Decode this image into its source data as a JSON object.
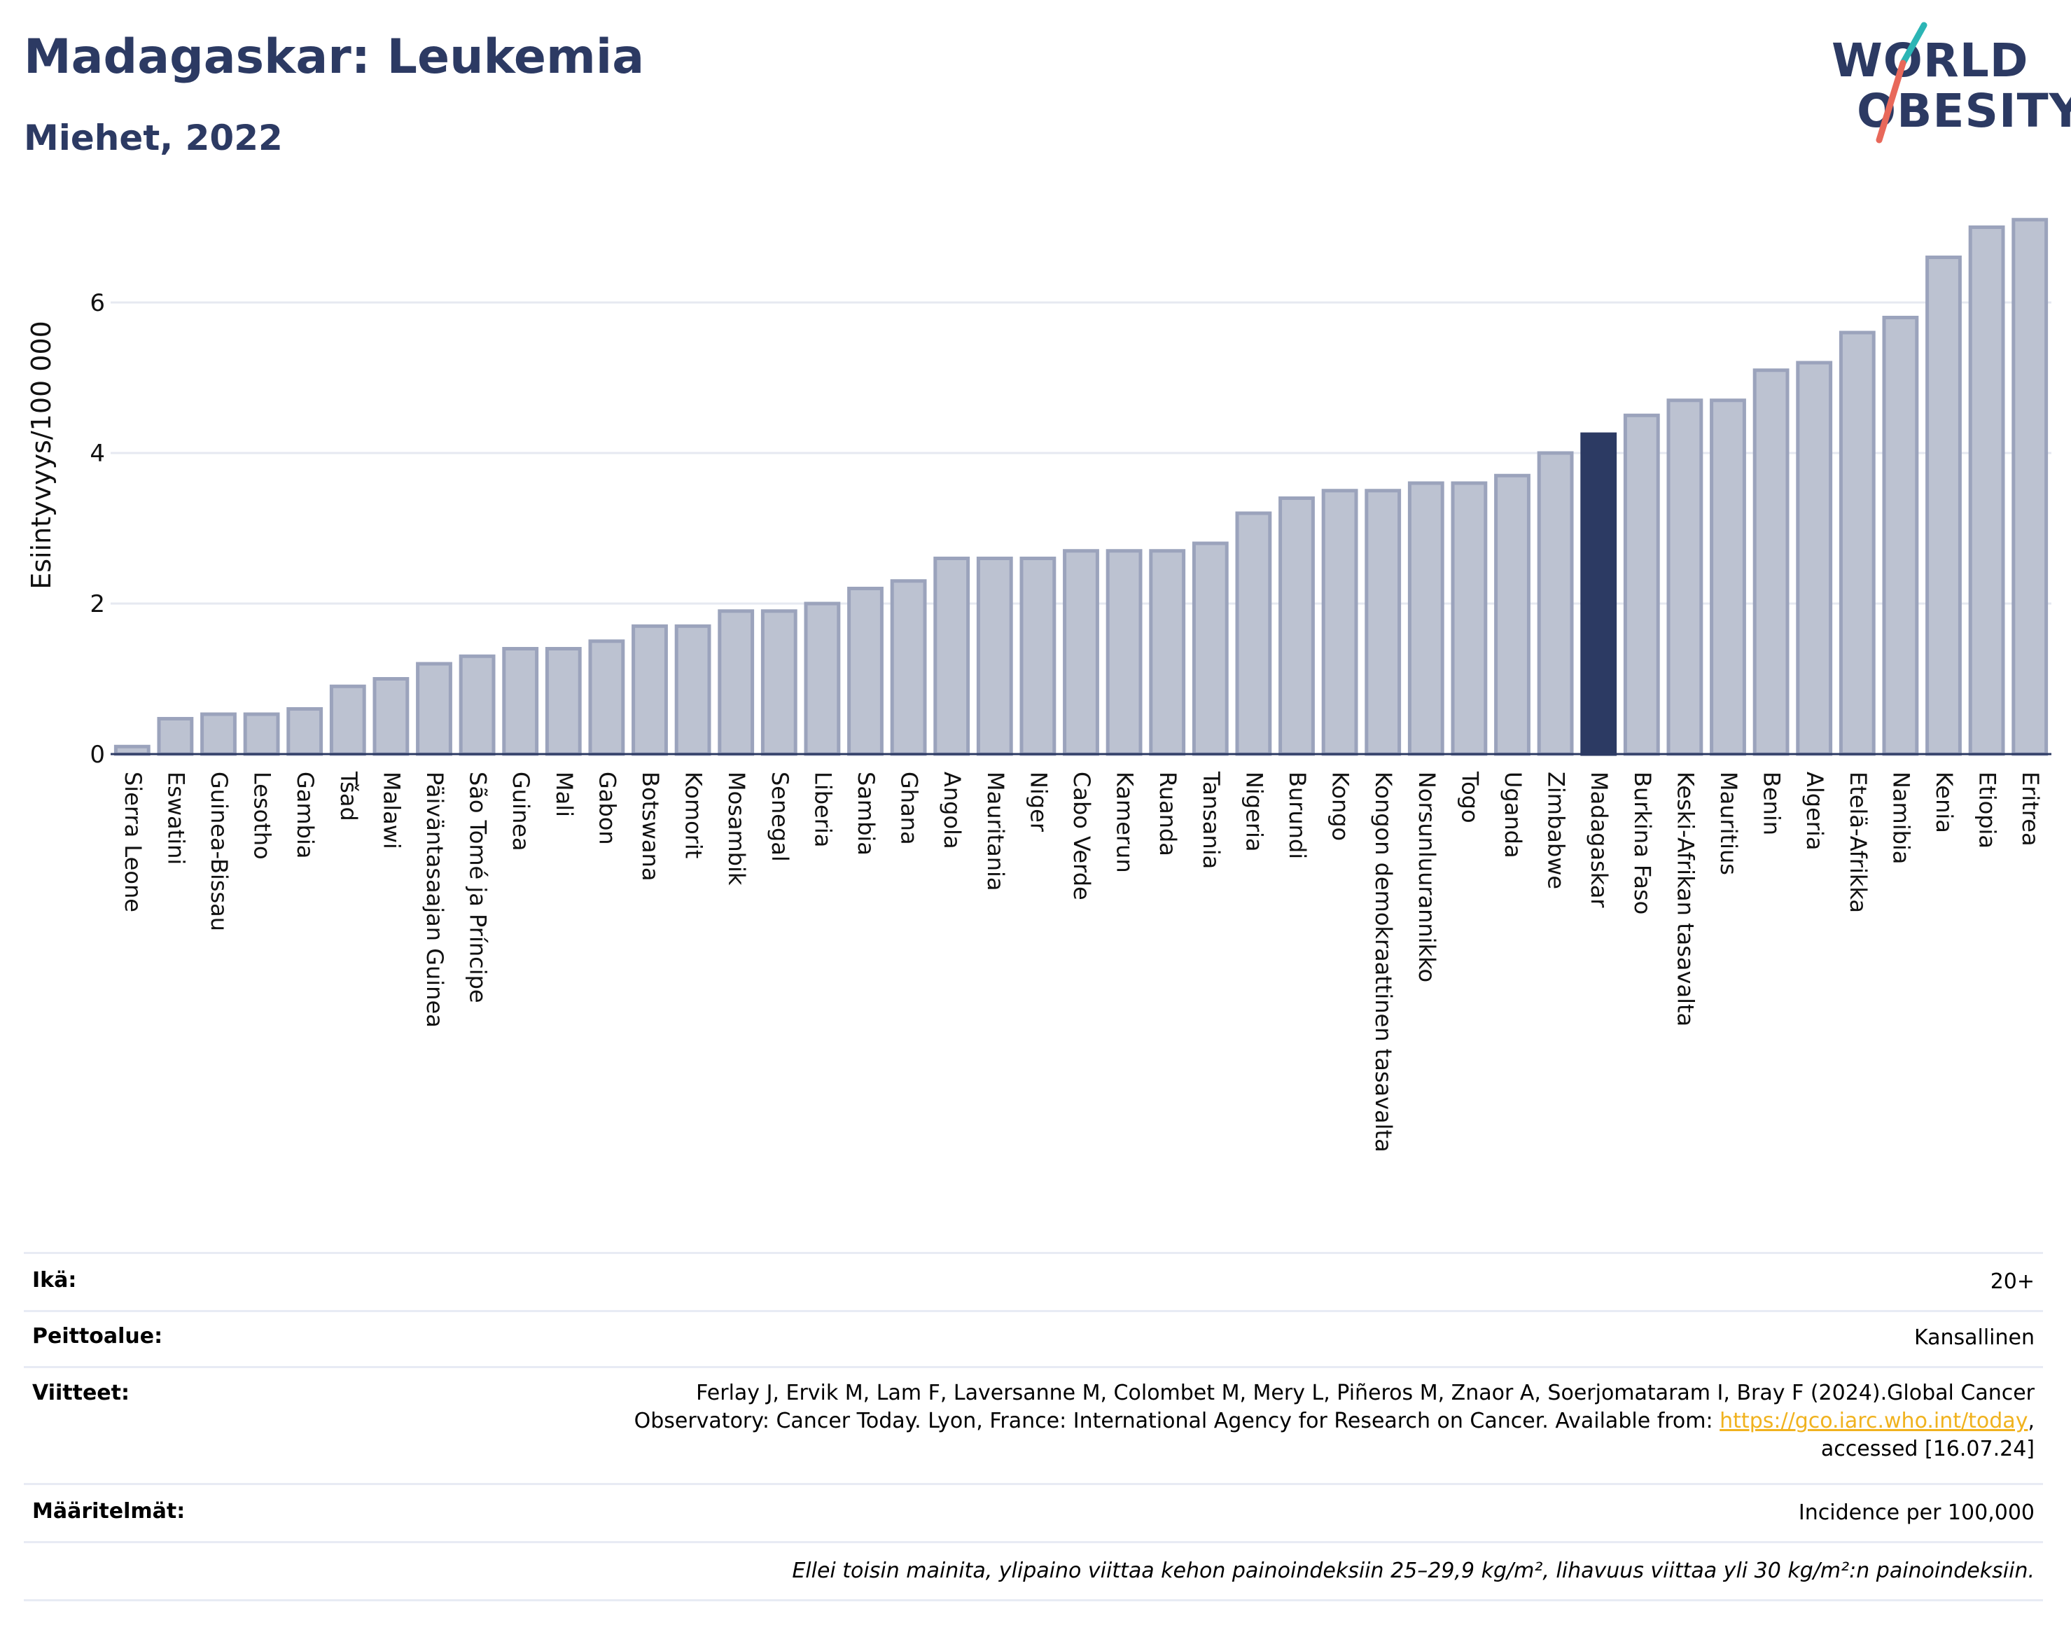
{
  "header": {
    "title": "Madagaskar: Leukemia",
    "subtitle": "Miehet, 2022"
  },
  "logo": {
    "line1": "WORLD",
    "line2": "OBESITY",
    "colors": {
      "text": "#2c3a63",
      "slash_top": "#2bb5b5",
      "slash_bottom": "#e8685a"
    }
  },
  "chart_data": {
    "type": "bar",
    "ylabel": "Esiintyvyys/100 000",
    "ylim": [
      0,
      7.5
    ],
    "yticks": [
      0,
      2,
      4,
      6
    ],
    "grid": true,
    "highlight": "Madagaskar",
    "colors": {
      "bar": "#bcc2d1",
      "bar_edge": "#9ba3bc",
      "highlight": "#2c3a63"
    },
    "categories": [
      "Sierra Leone",
      "Eswatini",
      "Guinea-Bissau",
      "Lesotho",
      "Gambia",
      "Tšad",
      "Malawi",
      "Päiväntasaajan Guinea",
      "São Tomé ja Príncipe",
      "Guinea",
      "Mali",
      "Gabon",
      "Botswana",
      "Komorit",
      "Mosambik",
      "Senegal",
      "Liberia",
      "Sambia",
      "Ghana",
      "Angola",
      "Mauritania",
      "Niger",
      "Cabo Verde",
      "Kamerun",
      "Ruanda",
      "Tansania",
      "Nigeria",
      "Burundi",
      "Kongo",
      "Kongon demokraattinen tasavalta",
      "Norsunluurannikko",
      "Togo",
      "Uganda",
      "Zimbabwe",
      "Madagaskar",
      "Burkina Faso",
      "Keski-Afrikan tasavalta",
      "Mauritius",
      "Benin",
      "Algeria",
      "Etelä-Afrikka",
      "Namibia",
      "Kenia",
      "Etiopia",
      "Eritrea"
    ],
    "values": [
      0.1,
      0.47,
      0.53,
      0.53,
      0.6,
      0.9,
      1.0,
      1.2,
      1.3,
      1.4,
      1.4,
      1.5,
      1.7,
      1.7,
      1.9,
      1.9,
      2.0,
      2.2,
      2.3,
      2.6,
      2.6,
      2.6,
      2.7,
      2.7,
      2.7,
      2.8,
      3.2,
      3.4,
      3.5,
      3.5,
      3.6,
      3.6,
      3.7,
      4.0,
      4.25,
      4.5,
      4.7,
      4.7,
      5.1,
      5.2,
      5.6,
      5.8,
      6.6,
      7.0,
      7.1
    ]
  },
  "details": {
    "age_label": "Ikä:",
    "age_value": "20+",
    "coverage_label": "Peittoalue:",
    "coverage_value": "Kansallinen",
    "refs_label": "Viitteet:",
    "refs_line1": "Ferlay J, Ervik M, Lam F, Laversanne M, Colombet M, Mery L, Piñeros M, Znaor A, Soerjomataram I, Bray F (2024).Global Cancer",
    "refs_line2_pre": "Observatory: Cancer Today. Lyon, France: International Agency for Research on Cancer. Available from: ",
    "refs_link": "https://gco.iarc.who.int/today",
    "refs_line2_post": ",",
    "refs_line3": "accessed [16.07.24]",
    "defs_label": "Määritelmät:",
    "defs_value": "Incidence per 100,000",
    "note": "Ellei toisin mainita, ylipaino viittaa kehon painoindeksiin 25–29,9 kg/m², lihavuus viittaa yli 30 kg/m²:n painoindeksiin."
  }
}
